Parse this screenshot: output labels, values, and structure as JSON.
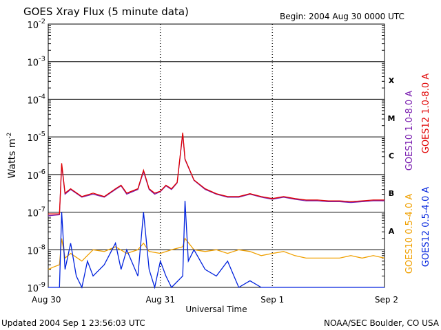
{
  "chart_data": {
    "type": "line",
    "title": "GOES Xray Flux (5 minute data)",
    "begin": "Begin:  2004 Aug 30 0000 UTC",
    "xlabel": "Universal Time",
    "ylabel": "Watts m",
    "ylabel_exp": "-2",
    "y_scale": "log",
    "ylim": [
      1e-09,
      0.01
    ],
    "xlim_days": [
      0,
      3
    ],
    "x_ticks": [
      {
        "day": 0,
        "label": "Aug 30"
      },
      {
        "day": 1,
        "label": "Aug 31"
      },
      {
        "day": 2,
        "label": "Sep 1"
      },
      {
        "day": 3,
        "label": "Sep 2"
      }
    ],
    "y_ticks": [
      {
        "base": "10",
        "exp": "-2",
        "value": 0.01
      },
      {
        "base": "10",
        "exp": "-3",
        "value": 0.001
      },
      {
        "base": "10",
        "exp": "-4",
        "value": 0.0001
      },
      {
        "base": "10",
        "exp": "-5",
        "value": 1e-05
      },
      {
        "base": "10",
        "exp": "-6",
        "value": 1e-06
      },
      {
        "base": "10",
        "exp": "-7",
        "value": 1e-07
      },
      {
        "base": "10",
        "exp": "-8",
        "value": 1e-08
      },
      {
        "base": "10",
        "exp": "-9",
        "value": 1e-09
      }
    ],
    "flare_classes": [
      {
        "label": "X",
        "value": 0.0001
      },
      {
        "label": "M",
        "value": 1e-05
      },
      {
        "label": "C",
        "value": 1e-06
      },
      {
        "label": "B",
        "value": 1e-07
      },
      {
        "label": "A",
        "value": 1e-08
      }
    ],
    "grid": "horizontal lines at each decade; dashed vertical lines at day boundaries",
    "series": [
      {
        "name": "GOES10 1.0-8.0 A",
        "color": "#7b1fb0",
        "x": [
          0,
          0.1,
          0.12,
          0.15,
          0.2,
          0.3,
          0.4,
          0.5,
          0.6,
          0.65,
          0.7,
          0.8,
          0.85,
          0.9,
          0.95,
          1.0,
          1.05,
          1.1,
          1.15,
          1.2,
          1.22,
          1.3,
          1.4,
          1.5,
          1.6,
          1.7,
          1.8,
          1.9,
          2.0,
          2.1,
          2.2,
          2.3,
          2.4,
          2.5,
          2.6,
          2.7,
          2.8,
          2.9,
          3.0
        ],
        "y": [
          8e-08,
          8.5e-08,
          1.8e-06,
          3e-07,
          4e-07,
          2.5e-07,
          3e-07,
          2.5e-07,
          4e-07,
          5e-07,
          3e-07,
          4e-07,
          1.2e-06,
          4e-07,
          3e-07,
          3.5e-07,
          5e-07,
          4e-07,
          6e-07,
          1.2e-05,
          2.5e-06,
          7e-07,
          4e-07,
          3e-07,
          2.5e-07,
          2.5e-07,
          3e-07,
          2.5e-07,
          2.2e-07,
          2.5e-07,
          2.2e-07,
          2e-07,
          2e-07,
          1.9e-07,
          1.9e-07,
          1.8e-07,
          1.9e-07,
          2e-07,
          2e-07
        ]
      },
      {
        "name": "GOES12 1.0-8.0 A",
        "color": "#e00000",
        "x": [
          0,
          0.1,
          0.12,
          0.15,
          0.2,
          0.3,
          0.4,
          0.5,
          0.6,
          0.65,
          0.7,
          0.8,
          0.85,
          0.9,
          0.95,
          1.0,
          1.05,
          1.1,
          1.15,
          1.2,
          1.22,
          1.3,
          1.4,
          1.5,
          1.6,
          1.7,
          1.8,
          1.9,
          2.0,
          2.1,
          2.2,
          2.3,
          2.4,
          2.5,
          2.6,
          2.7,
          2.8,
          2.9,
          3.0
        ],
        "y": [
          9e-08,
          9e-08,
          2e-06,
          3.2e-07,
          4.2e-07,
          2.6e-07,
          3.2e-07,
          2.6e-07,
          4.2e-07,
          5.2e-07,
          3.2e-07,
          4.2e-07,
          1.3e-06,
          4.2e-07,
          3.2e-07,
          3.6e-07,
          5.2e-07,
          4.2e-07,
          6.2e-07,
          1.3e-05,
          2.6e-06,
          7.2e-07,
          4.2e-07,
          3.1e-07,
          2.6e-07,
          2.6e-07,
          3.1e-07,
          2.6e-07,
          2.3e-07,
          2.6e-07,
          2.3e-07,
          2.1e-07,
          2.1e-07,
          2e-07,
          2e-07,
          1.9e-07,
          2e-07,
          2.1e-07,
          2.1e-07
        ]
      },
      {
        "name": "GOES10 0.5-4.0 A",
        "color": "#f0a000",
        "x": [
          0,
          0.05,
          0.1,
          0.12,
          0.15,
          0.2,
          0.3,
          0.4,
          0.5,
          0.6,
          0.7,
          0.8,
          0.85,
          0.9,
          1.0,
          1.1,
          1.2,
          1.22,
          1.3,
          1.4,
          1.5,
          1.6,
          1.7,
          1.8,
          1.9,
          2.0,
          2.1,
          2.2,
          2.3,
          2.4,
          2.5,
          2.6,
          2.7,
          2.8,
          2.9,
          3.0
        ],
        "y": [
          3e-09,
          3.5e-09,
          4e-09,
          2e-08,
          6e-09,
          8e-09,
          5e-09,
          1e-08,
          9e-09,
          1.2e-08,
          8e-09,
          1e-08,
          1.5e-08,
          9e-09,
          8e-09,
          1e-08,
          1.2e-08,
          2e-08,
          1e-08,
          9e-09,
          1e-08,
          8e-09,
          1e-08,
          9e-09,
          7e-09,
          8e-09,
          9e-09,
          7e-09,
          6e-09,
          6e-09,
          6e-09,
          6e-09,
          7e-09,
          6e-09,
          7e-09,
          6e-09
        ]
      },
      {
        "name": "GOES12 0.5-4.0 A",
        "color": "#0022dd",
        "x": [
          0,
          0.05,
          0.1,
          0.12,
          0.15,
          0.2,
          0.25,
          0.3,
          0.35,
          0.4,
          0.5,
          0.6,
          0.65,
          0.7,
          0.8,
          0.85,
          0.9,
          0.95,
          1.0,
          1.05,
          1.1,
          1.2,
          1.22,
          1.25,
          1.3,
          1.4,
          1.5,
          1.6,
          1.7,
          1.8,
          1.9,
          2.0,
          2.1,
          2.2,
          2.3,
          2.4,
          2.5,
          2.6,
          2.7,
          2.8,
          2.9,
          3.0
        ],
        "y": [
          1e-09,
          1e-09,
          1e-09,
          1e-07,
          3e-09,
          1.5e-08,
          2e-09,
          1e-09,
          5e-09,
          2e-09,
          4e-09,
          1.5e-08,
          3e-09,
          1e-08,
          2e-09,
          1e-07,
          3e-09,
          1e-09,
          5e-09,
          2e-09,
          1e-09,
          2e-09,
          2e-07,
          5e-09,
          1e-08,
          3e-09,
          2e-09,
          5e-09,
          1e-09,
          1.5e-09,
          1e-09,
          1e-09,
          1e-09,
          1e-09,
          1e-09,
          1e-09,
          1e-09,
          1e-09,
          1e-09,
          1e-09,
          1e-09,
          1e-09
        ]
      }
    ]
  },
  "footer": {
    "updated": "Updated 2004 Sep  1 23:56:03 UTC",
    "credit": "NOAA/SEC Boulder, CO USA"
  }
}
